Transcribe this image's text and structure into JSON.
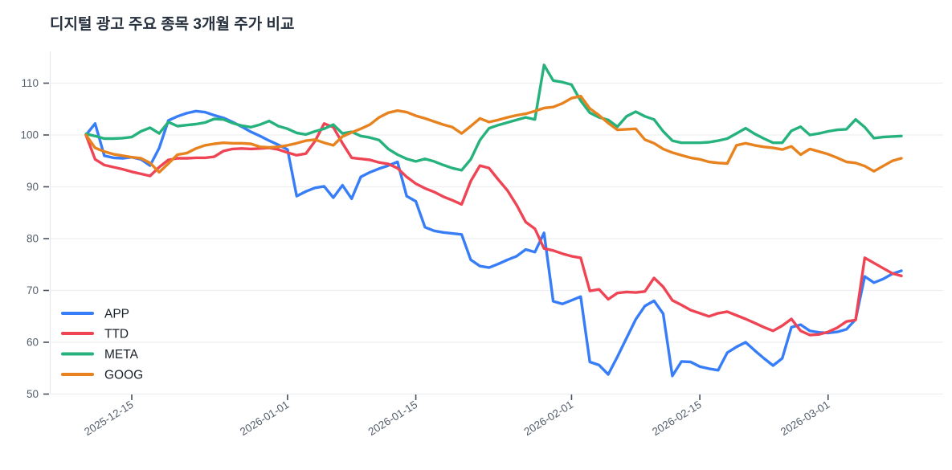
{
  "title": "디지털 광고 주요 종목 3개월 주가 비교",
  "colors": {
    "app_blue": "#377df7",
    "ttd_red": "#ee4454",
    "meta_green": "#26b27d",
    "goog_orange": "#e8821e",
    "grid": "#edeff2",
    "axis_text": "#545e6b",
    "title_text": "#26303d"
  },
  "chart_data": {
    "type": "line",
    "title": "디지털 광고 주요 종목 3개월 주가 비교",
    "xlabel": "",
    "ylabel": "",
    "grid": "horizontal-only",
    "legend_position": "inside-left-middle",
    "y_ticks": [
      50,
      60,
      70,
      80,
      90,
      100,
      110
    ],
    "ylim": [
      50,
      116
    ],
    "x_tick_labels": [
      "2025-12-15",
      "2026-01-01",
      "2026-01-15",
      "2026-02-01",
      "2026-02-15",
      "2026-03-01"
    ],
    "x": [
      "2025-12-10",
      "2025-12-11",
      "2025-12-12",
      "2025-12-13",
      "2025-12-14",
      "2025-12-15",
      "2025-12-16",
      "2025-12-17",
      "2025-12-18",
      "2025-12-19",
      "2025-12-20",
      "2025-12-21",
      "2025-12-22",
      "2025-12-23",
      "2025-12-24",
      "2025-12-25",
      "2025-12-26",
      "2025-12-27",
      "2025-12-28",
      "2025-12-29",
      "2025-12-30",
      "2025-12-31",
      "2026-01-01",
      "2026-01-02",
      "2026-01-03",
      "2026-01-04",
      "2026-01-05",
      "2026-01-06",
      "2026-01-07",
      "2026-01-08",
      "2026-01-09",
      "2026-01-10",
      "2026-01-11",
      "2026-01-12",
      "2026-01-13",
      "2026-01-14",
      "2026-01-15",
      "2026-01-16",
      "2026-01-17",
      "2026-01-18",
      "2026-01-19",
      "2026-01-20",
      "2026-01-21",
      "2026-01-22",
      "2026-01-23",
      "2026-01-24",
      "2026-01-25",
      "2026-01-26",
      "2026-01-27",
      "2026-01-28",
      "2026-01-29",
      "2026-01-30",
      "2026-01-31",
      "2026-02-01",
      "2026-02-02",
      "2026-02-03",
      "2026-02-04",
      "2026-02-05",
      "2026-02-06",
      "2026-02-07",
      "2026-02-08",
      "2026-02-09",
      "2026-02-10",
      "2026-02-11",
      "2026-02-12",
      "2026-02-13",
      "2026-02-14",
      "2026-02-15",
      "2026-02-16",
      "2026-02-17",
      "2026-02-18",
      "2026-02-19",
      "2026-02-20",
      "2026-02-21",
      "2026-02-22",
      "2026-02-23",
      "2026-02-24",
      "2026-02-25",
      "2026-02-26",
      "2026-02-27",
      "2026-02-28",
      "2026-03-01",
      "2026-03-02",
      "2026-03-03",
      "2026-03-04",
      "2026-03-05",
      "2026-03-06",
      "2026-03-07",
      "2026-03-08",
      "2026-03-09"
    ],
    "series": [
      {
        "name": "APP",
        "color": "#377df7",
        "values": [
          100,
          102.2,
          96,
          95.6,
          95.5,
          95.7,
          95.3,
          94.1,
          97.5,
          102.8,
          103.6,
          104.2,
          104.6,
          104.4,
          103.8,
          103.3,
          102.5,
          101.6,
          100.6,
          99.8,
          98.9,
          98.1,
          97.2,
          88.2,
          89.1,
          89.8,
          90.1,
          87.9,
          90.3,
          87.7,
          91.9,
          92.8,
          93.5,
          94.1,
          94.8,
          88.2,
          87.2,
          82.2,
          81.5,
          81.2,
          81,
          80.8,
          75.9,
          74.7,
          74.4,
          75.1,
          75.9,
          76.6,
          77.9,
          77.4,
          81.1,
          67.9,
          67.4,
          68.1,
          68.8,
          56.2,
          55.6,
          53.8,
          57.2,
          60.8,
          64.4,
          67,
          68,
          65.5,
          53.5,
          56.3,
          56.2,
          55.3,
          54.9,
          54.6,
          58,
          59.1,
          60,
          58.4,
          56.9,
          55.5,
          56.9,
          62.9,
          63.4,
          62.2,
          61.9,
          61.8,
          62,
          62.5,
          64.4,
          72.7,
          71.5,
          72.2,
          73.2,
          73.8
        ]
      },
      {
        "name": "TTD",
        "color": "#ee4454",
        "values": [
          100,
          95.3,
          94.2,
          93.8,
          93.4,
          92.9,
          92.5,
          92.1,
          93.8,
          95.2,
          95.5,
          95.5,
          95.6,
          95.6,
          95.8,
          96.9,
          97.3,
          97.4,
          97.3,
          97.4,
          97.5,
          97.2,
          96.6,
          96.1,
          96.4,
          98.8,
          102.2,
          101.5,
          98.4,
          95.6,
          95.4,
          95.2,
          94.7,
          94.4,
          93.6,
          91.9,
          90.6,
          89.7,
          89,
          88.1,
          87.4,
          86.6,
          91.1,
          94.1,
          93.6,
          91.4,
          89.3,
          86.5,
          83.2,
          81.9,
          78.1,
          77.7,
          77.1,
          76.6,
          76.3,
          69.9,
          70.2,
          68.3,
          69.5,
          69.7,
          69.6,
          69.8,
          72.4,
          70.7,
          68.1,
          67.2,
          66.2,
          65.6,
          65,
          65.6,
          65.9,
          65.2,
          64.5,
          63.7,
          62.9,
          62.2,
          63.2,
          64.5,
          62.2,
          61.4,
          61.5,
          62,
          62.8,
          64,
          64.3,
          76.3,
          75.3,
          74.3,
          73.3,
          72.8
        ]
      },
      {
        "name": "META",
        "color": "#26b27d",
        "values": [
          100.2,
          99.8,
          99.3,
          99.3,
          99.4,
          99.6,
          100.7,
          101.4,
          100.3,
          102.5,
          101.7,
          101.9,
          102.1,
          102.4,
          103.1,
          103,
          102.3,
          101.8,
          101.5,
          102,
          102.7,
          101.7,
          101.2,
          100.4,
          100.1,
          100.7,
          101.2,
          102,
          100.3,
          100.6,
          99.8,
          99.5,
          99,
          97.3,
          96.2,
          95.4,
          94.9,
          95.4,
          94.9,
          94.2,
          93.6,
          93.2,
          95.3,
          99,
          101.3,
          101.9,
          102.4,
          102.9,
          103.4,
          103,
          113.5,
          110.5,
          110.2,
          109.7,
          106.6,
          104.3,
          103.4,
          102.9,
          101.6,
          103.6,
          104.5,
          103.6,
          103,
          100.7,
          98.9,
          98.5,
          98.5,
          98.5,
          98.6,
          98.9,
          99.3,
          100.3,
          101.3,
          100.2,
          99.3,
          98.5,
          98.5,
          100.8,
          101.6,
          100,
          100.3,
          100.7,
          101,
          101.1,
          103,
          101.5,
          99.4,
          99.6,
          99.7,
          99.8
        ]
      },
      {
        "name": "GOOG",
        "color": "#e8821e",
        "values": [
          100,
          97.5,
          96.8,
          96.3,
          96,
          95.7,
          95.5,
          94.6,
          92.8,
          94.5,
          96.2,
          96.5,
          97.4,
          98,
          98.3,
          98.5,
          98.4,
          98.4,
          98.3,
          97.7,
          97.6,
          97.7,
          98,
          98.4,
          98.9,
          99.1,
          98.5,
          98,
          99.7,
          100.5,
          101.2,
          102,
          103.4,
          104.3,
          104.7,
          104.4,
          103.7,
          103.2,
          102.6,
          102,
          101.5,
          100.3,
          101.7,
          103.2,
          102.5,
          102.9,
          103.4,
          103.8,
          104.1,
          104.6,
          105.2,
          105.4,
          106.1,
          107.1,
          107.5,
          105.1,
          103.8,
          102.3,
          101,
          101.1,
          101.2,
          99.1,
          98.4,
          97.3,
          96.6,
          96.1,
          95.6,
          95.3,
          94.8,
          94.6,
          94.5,
          98,
          98.4,
          98,
          97.7,
          97.5,
          97.2,
          97.8,
          96.2,
          97.3,
          96.8,
          96.3,
          95.6,
          94.8,
          94.6,
          94,
          93,
          94,
          95,
          95.5
        ]
      }
    ]
  }
}
